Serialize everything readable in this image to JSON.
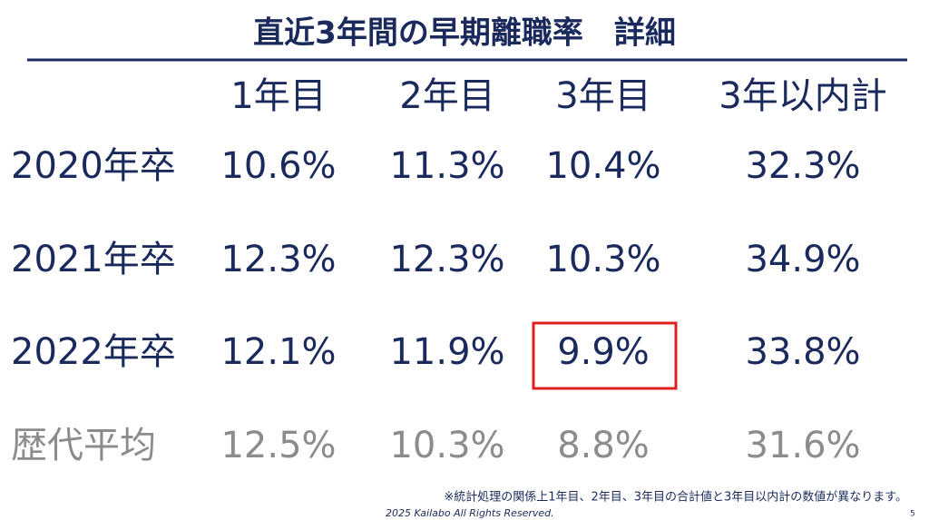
{
  "header": {
    "title": "直近3年間の早期離職率　詳細"
  },
  "table": {
    "columns": [
      "1年目",
      "2年目",
      "3年目",
      "3年以内計"
    ],
    "rows": [
      {
        "label": "2020年卒",
        "cells": [
          "10.6%",
          "11.3%",
          "10.4%",
          "32.3%"
        ]
      },
      {
        "label": "2021年卒",
        "cells": [
          "12.3%",
          "12.3%",
          "10.3%",
          "34.9%"
        ]
      },
      {
        "label": "2022年卒",
        "cells": [
          "12.1%",
          "11.9%",
          "9.9%",
          "33.8%"
        ]
      },
      {
        "label": "歴代平均",
        "cells": [
          "12.5%",
          "10.3%",
          "8.8%",
          "31.6%"
        ]
      }
    ]
  },
  "footer": {
    "note": "※統計処理の関係上1年目、2年目、3年目の合計値と3年目以内計の数値が異なります。",
    "copyright": "2025  Kailabo All Rights Reserved.",
    "page": "5"
  }
}
